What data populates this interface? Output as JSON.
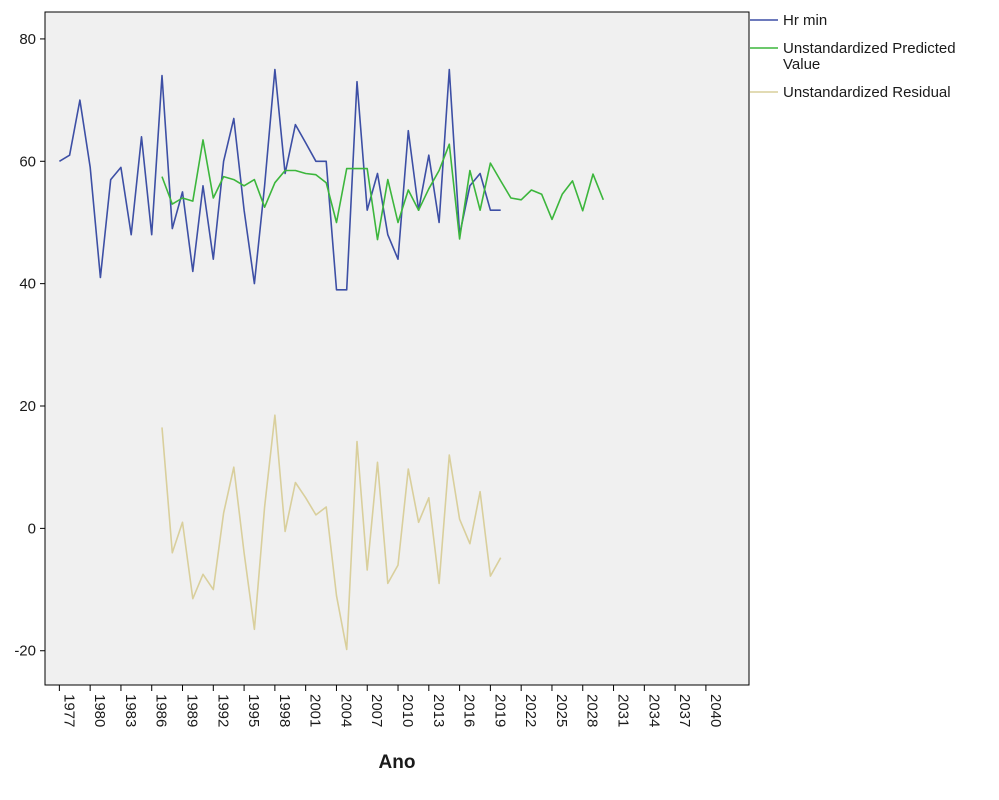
{
  "chart_data": {
    "type": "line",
    "xlabel": "Ano",
    "ylabel": "",
    "xlim": [
      1975.6,
      2044.2
    ],
    "ylim": [
      -25.6,
      84.4
    ],
    "x_ticks": [
      1977,
      1980,
      1983,
      1986,
      1989,
      1992,
      1995,
      1998,
      2001,
      2004,
      2007,
      2010,
      2013,
      2016,
      2019,
      2022,
      2025,
      2028,
      2031,
      2034,
      2037,
      2040
    ],
    "y_ticks": [
      -20,
      0,
      20,
      40,
      60,
      80
    ],
    "grid": false,
    "legend": "outside-top-right",
    "series": [
      {
        "name": "Hr min",
        "color": "#3d4fa5",
        "x": [
          1977,
          1978,
          1979,
          1980,
          1981,
          1982,
          1983,
          1984,
          1985,
          1986,
          1987,
          1988,
          1989,
          1990,
          1991,
          1992,
          1993,
          1994,
          1995,
          1996,
          1997,
          1998,
          1999,
          2000,
          2001,
          2002,
          2003,
          2004,
          2005,
          2006,
          2007,
          2008,
          2009,
          2010,
          2011,
          2012,
          2013,
          2014,
          2015,
          2016,
          2017,
          2018,
          2019,
          2020
        ],
        "values": [
          60,
          61,
          70,
          59,
          41,
          57,
          59,
          48,
          64,
          48,
          74,
          49,
          55,
          42,
          56,
          44,
          60,
          67,
          52,
          40,
          56,
          75,
          58,
          66,
          63,
          60,
          60,
          39,
          39,
          73,
          52,
          58,
          48,
          44,
          65,
          52,
          61,
          50,
          75,
          48,
          56,
          58,
          52,
          52
        ]
      },
      {
        "name": "Unstandardized Predicted\nValue",
        "color": "#3cb63c",
        "x": [
          1987,
          1988,
          1989,
          1990,
          1991,
          1992,
          1993,
          1994,
          1995,
          1996,
          1997,
          1998,
          1999,
          2000,
          2001,
          2002,
          2003,
          2004,
          2005,
          2006,
          2007,
          2008,
          2009,
          2010,
          2011,
          2012,
          2013,
          2014,
          2015,
          2016,
          2017,
          2018,
          2019,
          2020,
          2021,
          2022,
          2023,
          2024,
          2025,
          2026,
          2027,
          2028,
          2029,
          2030
        ],
        "values": [
          57.5,
          53,
          54,
          53.5,
          63.5,
          54,
          57.5,
          57,
          56,
          57,
          52.5,
          56.5,
          58.5,
          58.5,
          58,
          57.8,
          56.5,
          50,
          58.8,
          58.8,
          58.8,
          47.2,
          57,
          50,
          55.3,
          52,
          55.5,
          58.5,
          62.8,
          47.3,
          58.5,
          52,
          59.7,
          56.8,
          54,
          53.7,
          55.3,
          54.6,
          50.5,
          54.6,
          56.8,
          51.9,
          57.9,
          53.7
        ]
      },
      {
        "name": "Unstandardized Residual",
        "color": "#d9cf9c",
        "x": [
          1987,
          1988,
          1989,
          1990,
          1991,
          1992,
          1993,
          1994,
          1995,
          1996,
          1997,
          1998,
          1999,
          2000,
          2001,
          2002,
          2003,
          2004,
          2005,
          2006,
          2007,
          2008,
          2009,
          2010,
          2011,
          2012,
          2013,
          2014,
          2015,
          2016,
          2017,
          2018,
          2019,
          2020
        ],
        "values": [
          16.5,
          -4,
          1,
          -11.5,
          -7.5,
          -10,
          2.5,
          10,
          -4,
          -16.5,
          3.5,
          18.5,
          -0.5,
          7.5,
          5,
          2.2,
          3.5,
          -11,
          -19.8,
          14.2,
          -6.8,
          10.8,
          -9,
          -6,
          9.7,
          1,
          5,
          -9,
          12,
          1.5,
          -2.5,
          6,
          -7.8,
          -4.8
        ]
      }
    ]
  }
}
